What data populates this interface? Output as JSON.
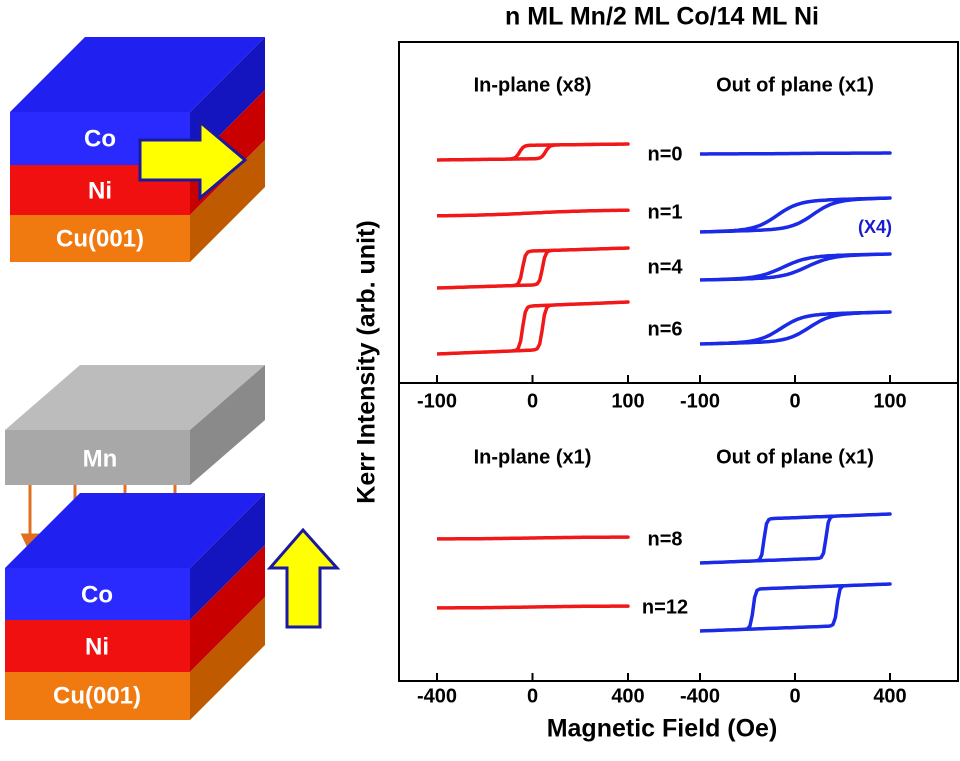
{
  "title": "n ML Mn/2 ML Co/14 ML Ni",
  "y_axis_label": "Kerr Intensity (arb. unit)",
  "x_axis_label": "Magnetic Field (Oe)",
  "top_panel": {
    "headers": [
      "In-plane (x8)",
      "Out of plane (x1)"
    ],
    "left_ticks": [
      "-100",
      "0",
      "100"
    ],
    "right_ticks": [
      "-100",
      "0",
      "100"
    ],
    "rows": [
      "n=0",
      "n=1",
      "n=4",
      "n=6"
    ],
    "scale_note": "(X4)"
  },
  "bottom_panel": {
    "headers": [
      "In-plane (x1)",
      "Out of plane (x1)"
    ],
    "left_ticks": [
      "-400",
      "0",
      "400"
    ],
    "right_ticks": [
      "-400",
      "0",
      "400"
    ],
    "rows": [
      "n=8",
      "n=12"
    ]
  },
  "diagram_top": {
    "layers": [
      "Co",
      "Ni",
      "Cu(001)"
    ]
  },
  "diagram_bottom": {
    "overlayer": "Mn",
    "layers": [
      "Co",
      "Ni",
      "Cu(001)"
    ]
  }
}
